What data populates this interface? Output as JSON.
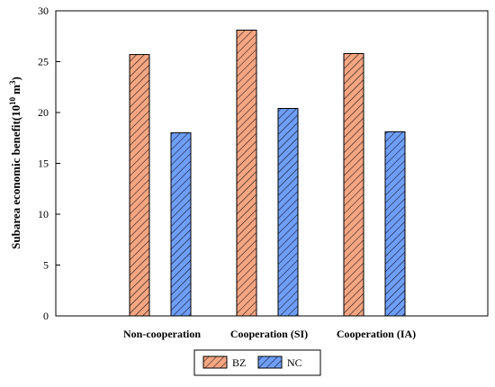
{
  "chart_data": {
    "type": "bar",
    "categories": [
      "Non-cooperation",
      "Cooperation (SI)",
      "Cooperation (IA)"
    ],
    "series": [
      {
        "name": "BZ",
        "values": [
          25.7,
          28.1,
          25.8
        ],
        "color": "#f4a582"
      },
      {
        "name": "NC",
        "values": [
          18.0,
          20.4,
          18.1
        ],
        "color": "#6f9ef8"
      }
    ],
    "ylabel": "Subarea economic benefit(10",
    "ylabel_exponent": "10",
    "ylabel_unit_base": "m",
    "ylabel_unit_exponent": "3",
    "ylabel_close": ")",
    "ylim": [
      0,
      30
    ],
    "yticks": [
      0,
      5,
      10,
      15,
      20,
      25,
      30
    ],
    "grid": false,
    "legend_position": "bottom-center"
  }
}
